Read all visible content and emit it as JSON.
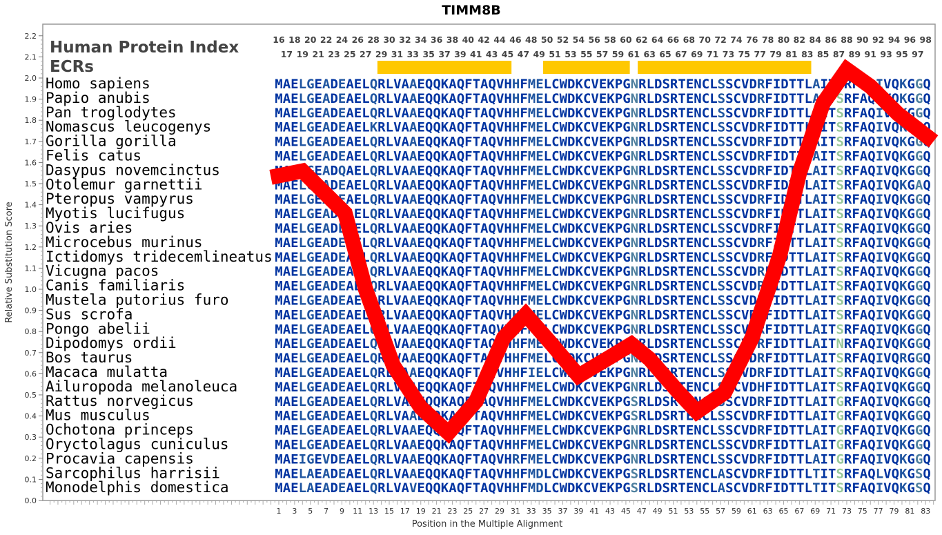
{
  "chart_data": {
    "type": "line",
    "title": "TIMM8B",
    "xlabel": "Position in the Multiple Alignment",
    "ylabel": "Relative Substitution Score",
    "ylim": [
      0,
      2.2
    ],
    "yticks": [
      0.0,
      0.1,
      0.2,
      0.3,
      0.4,
      0.5,
      0.6,
      0.7,
      0.8,
      0.9,
      1.0,
      1.1,
      1.2,
      1.3,
      1.4,
      1.5,
      1.6,
      1.7,
      1.8,
      1.9,
      2.0,
      2.1,
      2.2
    ],
    "xlim": [
      1,
      83
    ],
    "xtick_step": 2,
    "grid": false,
    "series": [
      {
        "color": "#ff0000",
        "x": [
          0,
          4,
          9.4,
          12,
          15.5,
          19,
          22.5,
          26,
          29.5,
          32.3,
          35.6,
          39,
          42.6,
          45.7,
          48,
          51.5,
          54,
          57.5,
          61,
          64.5,
          67,
          70,
          73,
          76,
          79.5,
          84
        ],
        "y": [
          1.53,
          1.56,
          1.36,
          1.0,
          0.64,
          0.44,
          0.32,
          0.47,
          0.77,
          0.88,
          0.74,
          0.59,
          0.67,
          0.74,
          0.67,
          0.52,
          0.42,
          0.51,
          0.77,
          1.16,
          1.55,
          1.88,
          2.04,
          1.96,
          1.83,
          1.7
        ]
      }
    ]
  },
  "alignment": {
    "index_label": "Human Protein Index",
    "ecr_label": "ECRs",
    "index_start": 16,
    "index_end": 98,
    "ecr_color": "#ffc800",
    "ecrs": [
      [
        29,
        45
      ],
      [
        50,
        60
      ],
      [
        62,
        83
      ]
    ],
    "residue_colors": {
      "conserved": "#0033a0",
      "mostly": "#1f55a0",
      "variable": "#4d7f9e",
      "divergent": "#98c89a"
    },
    "rows": [
      {
        "species": "Homo sapiens",
        "seq": "MAELGEADEAELQRLVAAEQQKAQFTAQVHHFMELCWDKCVEKPGNRLDSRTENCLSSCVDRFIDTTLAITSRFAQIVQKGGQ"
      },
      {
        "species": "Papio anubis",
        "seq": "MAELGEADEAELQRLVAAEQQKAQFTAQVHHFMELCWDKCVEKPGNRLDSRTENCLSSCVDRFIDTTLAITSRFAQIVQKGGQ"
      },
      {
        "species": "Pan troglodytes",
        "seq": "MAELGEADEAELQRLVAAEQQKAQFTAQVHHFMELCWDKCVEKPGNRLDSRTENCLSSCVDRFIDTTLAITSRFAQIVQKGGQ"
      },
      {
        "species": "Nomascus leucogenys",
        "seq": "MAELGEADEAELKRLVAAEQQKAQFTAQVHHFMELCWDKCVEKPGNRLDSRTENCLSSCVDRFIDTTLAITSRFAQIVQKGGQ"
      },
      {
        "species": "Gorilla gorilla",
        "seq": "MAELGEADEAELQRLVAAEQQKAQFTAQVHHFMELCWDKCVEKPGNRLDSRTENCLSSCVDRFIDTTLAITSRFAQIVQKGGQ"
      },
      {
        "species": "Felis catus",
        "seq": "MAELGEADEAELQRLVAAEQQKAQFTAQVHHFMELCWDKCVEKPGNRLDSRTENCLSSCVDRFIDTTLAITSRFAQIVQKGGQ"
      },
      {
        "species": "Dasypus novemcinctus",
        "seq": "MAELGEADQAELQRLVAAEQQKAQFTAQVHHFMELCWDKCVEKPGNRLDSRTENCLSSCVDRFIDTTLAITSRFAQIVQKGGQ"
      },
      {
        "species": "Otolemur garnettii",
        "seq": "MAELGEADEAELQRLVAAEQQKAQFTAQVHHFMELCWDKCVEKPGNRLDSRTENCLSSCVDRFIDTTLAITSRFAQIVQKGAQ"
      },
      {
        "species": "Pteropus vampyrus",
        "seq": "MAELGEADEAELQRLVAAEQQKAQFTAQVHHFMELCWDKCVEKPGNRLDSRTENCLSSCVDRFIDTTLAITSRFAQIVQKGGQ"
      },
      {
        "species": "Myotis lucifugus",
        "seq": "MAELGEADEAELQRLVAAEQQKAQFTAQVHHFMELCWDKCVEKPGNRLDSRTENCLSSCVDRFIDTTLAITSRFAQIVQKGGQ"
      },
      {
        "species": "Ovis aries",
        "seq": "MAELGEADEAELQRLVAAEQQKAQFTAQVHHFMELCWDKCVEKPGNRLDSRTENCLSSCVDRFIDTTLAITSRFAQIVQKGGQ"
      },
      {
        "species": "Microcebus murinus",
        "seq": "MAELGEADEAELQRLVAAEQQKAQFTAQVHHFMELCWDKCVEKPGNRLDSRTENCLSSCVDRFIDTTLAITSRFAQIVQKGGQ"
      },
      {
        "species": "Ictidomys tridecemlineatus",
        "seq": "MAELGEADEAELQRLVAAEQQKAQFTAQVHHFMELCWDKCVEKPGNRLDSRTENCLSSCVDRFIDTTLAITSRFAQIVQKGGQ"
      },
      {
        "species": "Vicugna pacos",
        "seq": "MAELGEADEAELQRLVAAEQQKAQFTAQVHHFMELCWDKCVEKPGNRLDSRTENCLSSCVDRFIDTTLAITSRFAQIVQKGGQ"
      },
      {
        "species": "Canis familiaris",
        "seq": "MAELGEADEAELQRLVAAEQQKAQFTAQVHHFMELCWDKCVEKPGNRLDSRTENCLSSCVDRFIDTTLAITSRFAQIVQKGGQ"
      },
      {
        "species": "Mustela putorius furo",
        "seq": "MAELGEADEAELQRLVAAEQQKAQFTAQVHHFMELCWDKCVEKPGNRLDSRTENCLSSCVDRFIDTTLAITSRFAQIVQKGGQ"
      },
      {
        "species": "Sus scrofa",
        "seq": "MAELGEADEAELQRLVAAEQQKAQFTAQVHHFMELCWDKCVEKPGNRLDSRTENCLSSCVDRFIDTTLAITSRFAQIVQKGGQ"
      },
      {
        "species": "Pongo abelii",
        "seq": "MAELGEADEAELQRLVAAEQQKAQFTAQVHHFMELCWDKCVEKPGNRLDSRTENCLSSCVDRFIDTTLAITSRFAQIVQKGGQ"
      },
      {
        "species": "Dipodomys ordii",
        "seq": "MAELGEADEAELQRLVAAEQQKAQFTAQVHHFMELCWDKCVEKPGNRLDSRTENCLSSCVDRFIDTTLAITNRFAQIVQKGGQ"
      },
      {
        "species": "Bos taurus",
        "seq": "MAELGEADEAELQRLVAAEQQKAQFTAQVHHFMELCWDKCVEKPGNRLDSRTENCLSSCVDRFIDTTLAITSRFAQIVQRGGQ"
      },
      {
        "species": "Macaca mulatta",
        "seq": "MAELGEADEAELQRLVAAEQQKAQFTAQVHHFIELCWDKCVEKPGNRLDSRTENCLSSCVDRFIDTTLAITSRFAQIVQKGGQ"
      },
      {
        "species": "Ailuropoda melanoleuca",
        "seq": "MAELGEADEAELQRLVAAEQQKAQFTAQVHHFMELCWDKCVEKPGNRLDSRTENCLSSCVDHFIDTTLAITSRFAQIVQKGGQ"
      },
      {
        "species": "Rattus norvegicus",
        "seq": "MAELGEADEAELQRLVAAEQQKAQFTAQVHHFMELCWDKCVEKPGSRLDSRTENCLSSCVDRFIDTTLAITGRFAQIVQKGGQ"
      },
      {
        "species": "Mus musculus",
        "seq": "MAELGEADEAELQRLVAAEQQKAQFTAQVHHFMELCWDKCVEKPGSRLDSRTENCLSSCVDRFIDTTLAITGRFAQIVQKGGQ"
      },
      {
        "species": "Ochotona princeps",
        "seq": "MAELGEADEAELQRLVAAEQQKAQFTAQVHHFMELCWDKCVEKPGNRLDSRTENCLSSCVDRFIDTTLAITGRFAQIVQKGGQ"
      },
      {
        "species": "Oryctolagus cuniculus",
        "seq": "MAELGEADEAELQRLVAAEQQKAQFTAQVHHFMELCWDKCVEKPGNRLDSRTENCLSSCVDRFIDTTLAITGRFAQIVQKGGQ"
      },
      {
        "species": "Procavia capensis",
        "seq": "MAEIGEVDEAELQRLVAAEQQKAQFTAQVHRFMELCWDKCVEKPGNRLDSRTENCLSSCVDRFIDTTLAITGRFAQIVQKGGQ"
      },
      {
        "species": "Sarcophilus harrisii",
        "seq": "MAELAEADEAELQRLVAAEQQKAQFTAQVHHFMDLCWDKCVEKPGSRLDSRTENCLASCVDRFIDTTLTITSRFAQLVQKGSQ"
      },
      {
        "species": "Monodelphis domestica",
        "seq": "MAELAEADEAELQRLVAVEQQKAQFTAQVHHFMDLCWDKCVEKPGSRLDSRTENCLASCVDRFIDTTLTITSRFAQIVQKGSQ"
      }
    ]
  }
}
